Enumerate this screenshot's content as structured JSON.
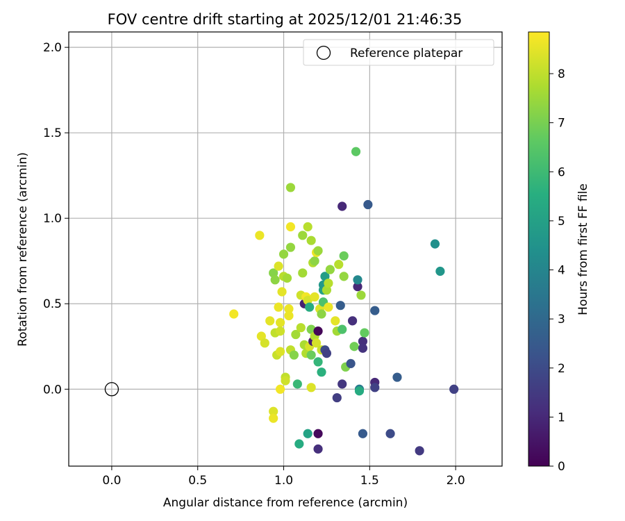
{
  "chart_data": {
    "type": "scatter",
    "title": "FOV centre drift starting at 2025/12/01 21:46:35",
    "xlabel": "Angular distance from reference (arcmin)",
    "ylabel": "Rotation from reference (arcmin)",
    "xlim": [
      -0.25,
      2.27
    ],
    "ylim": [
      -0.45,
      2.09
    ],
    "xticks": [
      0.0,
      0.5,
      1.0,
      1.5,
      2.0
    ],
    "xtick_labels": [
      "0.0",
      "0.5",
      "1.0",
      "1.5",
      "2.0"
    ],
    "yticks": [
      0.0,
      0.5,
      1.0,
      1.5,
      2.0
    ],
    "ytick_labels": [
      "0.0",
      "0.5",
      "1.0",
      "1.5",
      "2.0"
    ],
    "grid": true,
    "legend": {
      "position": "top-right",
      "entries": [
        {
          "label": "Reference platepar",
          "marker": "open-circle"
        }
      ]
    },
    "reference_point": {
      "x": 0.0,
      "y": 0.0
    },
    "colorbar": {
      "label": "Hours from first FF file",
      "min": 0,
      "max": 8.85,
      "ticks": [
        0,
        1,
        2,
        3,
        4,
        5,
        6,
        7,
        8
      ],
      "tick_labels": [
        "0",
        "1",
        "2",
        "3",
        "4",
        "5",
        "6",
        "7",
        "8"
      ],
      "colormap": "viridis"
    },
    "points": [
      {
        "x": 0.71,
        "y": 0.44,
        "c": 8.7
      },
      {
        "x": 0.86,
        "y": 0.9,
        "c": 8.6
      },
      {
        "x": 0.87,
        "y": 0.31,
        "c": 8.5
      },
      {
        "x": 0.89,
        "y": 0.27,
        "c": 8.3
      },
      {
        "x": 0.92,
        "y": 0.4,
        "c": 8.5
      },
      {
        "x": 0.94,
        "y": -0.13,
        "c": 8.4
      },
      {
        "x": 0.94,
        "y": -0.17,
        "c": 8.6
      },
      {
        "x": 0.94,
        "y": 0.68,
        "c": 7.2
      },
      {
        "x": 0.95,
        "y": 0.64,
        "c": 7.3
      },
      {
        "x": 0.95,
        "y": 0.33,
        "c": 8.0
      },
      {
        "x": 0.96,
        "y": 0.2,
        "c": 8.1
      },
      {
        "x": 0.97,
        "y": 0.72,
        "c": 8.4
      },
      {
        "x": 0.97,
        "y": 0.48,
        "c": 8.6
      },
      {
        "x": 0.98,
        "y": 0.39,
        "c": 8.5
      },
      {
        "x": 0.98,
        "y": 0.34,
        "c": 8.2
      },
      {
        "x": 0.98,
        "y": 0.22,
        "c": 8.4
      },
      {
        "x": 0.98,
        "y": 0.0,
        "c": 8.7
      },
      {
        "x": 0.99,
        "y": 0.57,
        "c": 8.5
      },
      {
        "x": 1.0,
        "y": 0.66,
        "c": 7.9
      },
      {
        "x": 1.0,
        "y": 0.79,
        "c": 7.4
      },
      {
        "x": 1.01,
        "y": 0.07,
        "c": 8.0
      },
      {
        "x": 1.01,
        "y": 0.05,
        "c": 8.2
      },
      {
        "x": 1.02,
        "y": 0.65,
        "c": 7.6
      },
      {
        "x": 1.03,
        "y": 0.43,
        "c": 8.6
      },
      {
        "x": 1.03,
        "y": 0.47,
        "c": 8.6
      },
      {
        "x": 1.04,
        "y": 1.18,
        "c": 7.5
      },
      {
        "x": 1.04,
        "y": 0.95,
        "c": 8.7
      },
      {
        "x": 1.04,
        "y": 0.83,
        "c": 7.4
      },
      {
        "x": 1.04,
        "y": 0.23,
        "c": 8.0
      },
      {
        "x": 1.06,
        "y": 0.2,
        "c": 7.2
      },
      {
        "x": 1.07,
        "y": 0.32,
        "c": 7.6
      },
      {
        "x": 1.08,
        "y": 0.03,
        "c": 5.9
      },
      {
        "x": 1.09,
        "y": -0.32,
        "c": 5.4
      },
      {
        "x": 1.1,
        "y": 0.55,
        "c": 8.2
      },
      {
        "x": 1.1,
        "y": 0.36,
        "c": 7.9
      },
      {
        "x": 1.11,
        "y": 0.9,
        "c": 7.5
      },
      {
        "x": 1.11,
        "y": 0.68,
        "c": 7.6
      },
      {
        "x": 1.12,
        "y": 0.26,
        "c": 7.7
      },
      {
        "x": 1.12,
        "y": 0.5,
        "c": 0.8
      },
      {
        "x": 1.13,
        "y": 0.21,
        "c": 7.8
      },
      {
        "x": 1.13,
        "y": 0.54,
        "c": 8.7
      },
      {
        "x": 1.14,
        "y": -0.26,
        "c": 5.1
      },
      {
        "x": 1.14,
        "y": 0.95,
        "c": 7.9
      },
      {
        "x": 1.14,
        "y": 0.52,
        "c": 8.3
      },
      {
        "x": 1.15,
        "y": 0.25,
        "c": 8.3
      },
      {
        "x": 1.15,
        "y": 0.48,
        "c": 5.4
      },
      {
        "x": 1.16,
        "y": 0.87,
        "c": 7.7
      },
      {
        "x": 1.16,
        "y": 0.35,
        "c": 7.1
      },
      {
        "x": 1.16,
        "y": 0.2,
        "c": 6.8
      },
      {
        "x": 1.16,
        "y": 0.01,
        "c": 8.4
      },
      {
        "x": 1.17,
        "y": 0.74,
        "c": 7.8
      },
      {
        "x": 1.17,
        "y": 0.28,
        "c": 0.7
      },
      {
        "x": 1.18,
        "y": 0.75,
        "c": 7.3
      },
      {
        "x": 1.18,
        "y": 0.54,
        "c": 8.5
      },
      {
        "x": 1.18,
        "y": 0.31,
        "c": 7.8
      },
      {
        "x": 1.19,
        "y": 0.8,
        "c": 8.6
      },
      {
        "x": 1.19,
        "y": 0.27,
        "c": 8.3
      },
      {
        "x": 1.2,
        "y": 0.81,
        "c": 7.5
      },
      {
        "x": 1.2,
        "y": 0.16,
        "c": 5.8
      },
      {
        "x": 1.2,
        "y": -0.26,
        "c": 0.2
      },
      {
        "x": 1.2,
        "y": -0.35,
        "c": 1.2
      },
      {
        "x": 1.2,
        "y": 0.34,
        "c": 0.1
      },
      {
        "x": 1.21,
        "y": 0.47,
        "c": 8.4
      },
      {
        "x": 1.22,
        "y": 0.44,
        "c": 7.3
      },
      {
        "x": 1.22,
        "y": 0.1,
        "c": 5.6
      },
      {
        "x": 1.22,
        "y": 0.23,
        "c": 8.1
      },
      {
        "x": 1.23,
        "y": 0.58,
        "c": 5.0
      },
      {
        "x": 1.23,
        "y": 0.61,
        "c": 4.7
      },
      {
        "x": 1.23,
        "y": 0.51,
        "c": 6.3
      },
      {
        "x": 1.24,
        "y": 0.66,
        "c": 4.9
      },
      {
        "x": 1.24,
        "y": 0.23,
        "c": 2.0
      },
      {
        "x": 1.25,
        "y": 0.58,
        "c": 7.7
      },
      {
        "x": 1.25,
        "y": 0.21,
        "c": 1.7
      },
      {
        "x": 1.26,
        "y": 0.62,
        "c": 7.9
      },
      {
        "x": 1.26,
        "y": 0.48,
        "c": 8.6
      },
      {
        "x": 1.27,
        "y": 0.7,
        "c": 7.4
      },
      {
        "x": 1.3,
        "y": 0.4,
        "c": 8.5
      },
      {
        "x": 1.31,
        "y": -0.05,
        "c": 1.6
      },
      {
        "x": 1.31,
        "y": 0.34,
        "c": 7.6
      },
      {
        "x": 1.32,
        "y": 0.73,
        "c": 7.9
      },
      {
        "x": 1.33,
        "y": 0.49,
        "c": 2.6
      },
      {
        "x": 1.34,
        "y": 0.35,
        "c": 6.3
      },
      {
        "x": 1.34,
        "y": 1.07,
        "c": 1.0
      },
      {
        "x": 1.34,
        "y": 0.03,
        "c": 1.4
      },
      {
        "x": 1.35,
        "y": 0.78,
        "c": 6.8
      },
      {
        "x": 1.35,
        "y": 0.66,
        "c": 7.4
      },
      {
        "x": 1.36,
        "y": 0.13,
        "c": 7.1
      },
      {
        "x": 1.39,
        "y": 0.15,
        "c": 2.3
      },
      {
        "x": 1.4,
        "y": 0.4,
        "c": 1.2
      },
      {
        "x": 1.41,
        "y": 0.25,
        "c": 6.9
      },
      {
        "x": 1.42,
        "y": 1.39,
        "c": 6.6
      },
      {
        "x": 1.43,
        "y": 0.6,
        "c": 1.0
      },
      {
        "x": 1.43,
        "y": 0.64,
        "c": 4.1
      },
      {
        "x": 1.44,
        "y": 0.0,
        "c": 3.6
      },
      {
        "x": 1.44,
        "y": -0.01,
        "c": 5.4
      },
      {
        "x": 1.45,
        "y": 0.55,
        "c": 7.5
      },
      {
        "x": 1.46,
        "y": 0.28,
        "c": 1.2
      },
      {
        "x": 1.46,
        "y": 0.24,
        "c": 1.3
      },
      {
        "x": 1.46,
        "y": -0.26,
        "c": 2.5
      },
      {
        "x": 1.47,
        "y": 0.33,
        "c": 6.7
      },
      {
        "x": 1.49,
        "y": 1.08,
        "c": 2.5
      },
      {
        "x": 1.53,
        "y": 0.46,
        "c": 2.6
      },
      {
        "x": 1.53,
        "y": 0.04,
        "c": 1.0
      },
      {
        "x": 1.53,
        "y": 0.01,
        "c": 1.7
      },
      {
        "x": 1.62,
        "y": -0.26,
        "c": 2.0
      },
      {
        "x": 1.66,
        "y": 0.07,
        "c": 2.6
      },
      {
        "x": 1.79,
        "y": -0.36,
        "c": 1.5
      },
      {
        "x": 1.88,
        "y": 0.85,
        "c": 4.4
      },
      {
        "x": 1.91,
        "y": 0.69,
        "c": 4.6
      },
      {
        "x": 1.99,
        "y": 0.0,
        "c": 1.7
      }
    ]
  }
}
